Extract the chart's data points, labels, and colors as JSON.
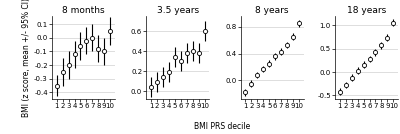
{
  "panels": [
    {
      "title": "8 months",
      "means": [
        -0.35,
        -0.25,
        -0.2,
        -0.12,
        -0.06,
        -0.02,
        0.0,
        -0.08,
        -0.1,
        0.05
      ],
      "ci_lo": [
        -0.43,
        -0.35,
        -0.3,
        -0.22,
        -0.16,
        -0.12,
        -0.1,
        -0.18,
        -0.2,
        -0.05
      ],
      "ci_hi": [
        -0.27,
        -0.15,
        -0.1,
        -0.02,
        0.04,
        0.08,
        0.1,
        0.02,
        0.0,
        0.15
      ],
      "ylim": [
        -0.45,
        0.16
      ],
      "yticks": [
        -0.4,
        -0.3,
        -0.2,
        -0.1,
        0.0,
        0.1
      ],
      "ytick_labels": [
        "-0.4",
        "-0.3",
        "-0.2",
        "-0.1",
        "0.0",
        "0.1"
      ]
    },
    {
      "title": "3.5 years",
      "means": [
        0.04,
        0.09,
        0.14,
        0.19,
        0.34,
        0.3,
        0.38,
        0.4,
        0.38,
        0.6
      ],
      "ci_lo": [
        -0.06,
        -0.01,
        0.04,
        0.09,
        0.24,
        0.2,
        0.28,
        0.3,
        0.28,
        0.5
      ],
      "ci_hi": [
        0.14,
        0.19,
        0.24,
        0.29,
        0.44,
        0.4,
        0.48,
        0.5,
        0.48,
        0.7
      ],
      "ylim": [
        -0.08,
        0.75
      ],
      "yticks": [
        0.0,
        0.2,
        0.4,
        0.6
      ],
      "ytick_labels": [
        "0.0",
        "0.2",
        "0.4",
        "0.6"
      ]
    },
    {
      "title": "8 years",
      "means": [
        -0.18,
        -0.05,
        0.08,
        0.17,
        0.25,
        0.36,
        0.43,
        0.53,
        0.65,
        0.85
      ],
      "ci_lo": [
        -0.23,
        -0.1,
        0.03,
        0.12,
        0.2,
        0.31,
        0.38,
        0.48,
        0.6,
        0.8
      ],
      "ci_hi": [
        -0.13,
        0.0,
        0.13,
        0.22,
        0.3,
        0.41,
        0.48,
        0.58,
        0.7,
        0.9
      ],
      "ylim": [
        -0.28,
        0.96
      ],
      "yticks": [
        0.0,
        0.4,
        0.8
      ],
      "ytick_labels": [
        "0.0",
        "0.4",
        "0.8"
      ]
    },
    {
      "title": "18 years",
      "means": [
        -0.42,
        -0.28,
        -0.12,
        0.03,
        0.16,
        0.28,
        0.42,
        0.57,
        0.74,
        1.06
      ],
      "ci_lo": [
        -0.49,
        -0.35,
        -0.19,
        -0.04,
        0.09,
        0.21,
        0.35,
        0.5,
        0.67,
        0.99
      ],
      "ci_hi": [
        -0.35,
        -0.21,
        -0.05,
        0.1,
        0.23,
        0.35,
        0.49,
        0.64,
        0.81,
        1.13
      ],
      "ylim": [
        -0.58,
        1.2
      ],
      "yticks": [
        -0.5,
        0.0,
        0.5,
        1.0
      ],
      "ytick_labels": [
        "-0.5",
        "0.0",
        "0.5",
        "1.0"
      ]
    }
  ],
  "xlabel": "BMI PRS decile",
  "ylabel": "BMI (z score, mean +/- 95% CI)",
  "xticks": [
    1,
    2,
    3,
    4,
    5,
    6,
    7,
    8,
    9,
    10
  ],
  "xtick_labels": [
    "1",
    "2",
    "3",
    "4",
    "5",
    "6",
    "7",
    "8",
    "9",
    "10"
  ],
  "marker_color": "white",
  "marker_edge_color": "black",
  "line_color": "black",
  "background_color": "white",
  "grid_color": "#d0d0d0",
  "title_fontsize": 6.5,
  "label_fontsize": 5.5,
  "tick_fontsize": 5.0,
  "marker_size": 3.0,
  "marker_edge_width": 0.6,
  "bar_linewidth": 0.8
}
